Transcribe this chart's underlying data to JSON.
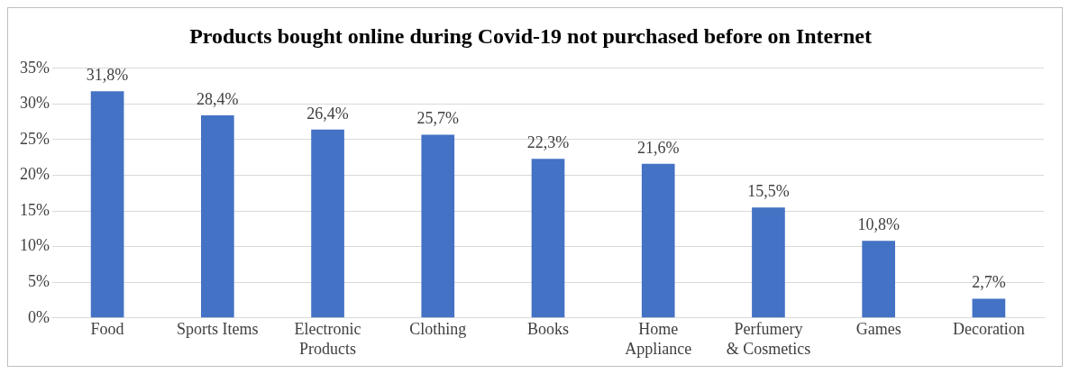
{
  "chart_data": {
    "type": "bar",
    "title": "Products bought online during Covid-19 not purchased before on Internet",
    "categories": [
      "Food",
      "Sports Items",
      "Electronic Products",
      "Clothing",
      "Books",
      "Home Appliance",
      "Perfumery & Cosmetics",
      "Games",
      "Decoration"
    ],
    "values": [
      31.8,
      28.4,
      26.4,
      25.7,
      22.3,
      21.6,
      15.5,
      10.8,
      2.7
    ],
    "value_labels": [
      "31,8%",
      "28,4%",
      "26,4%",
      "25,7%",
      "22,3%",
      "21,6%",
      "15,5%",
      "10,8%",
      "2,7%"
    ],
    "color": "#4472c4",
    "ylim": [
      0,
      35
    ],
    "yticks": [
      {
        "value": 0,
        "label": "0%"
      },
      {
        "value": 5,
        "label": "5%"
      },
      {
        "value": 10,
        "label": "10%"
      },
      {
        "value": 15,
        "label": "15%"
      },
      {
        "value": 20,
        "label": "20%"
      },
      {
        "value": 25,
        "label": "25%"
      },
      {
        "value": 30,
        "label": "30%"
      },
      {
        "value": 35,
        "label": "35%"
      }
    ],
    "grid": "y",
    "legend": false
  }
}
